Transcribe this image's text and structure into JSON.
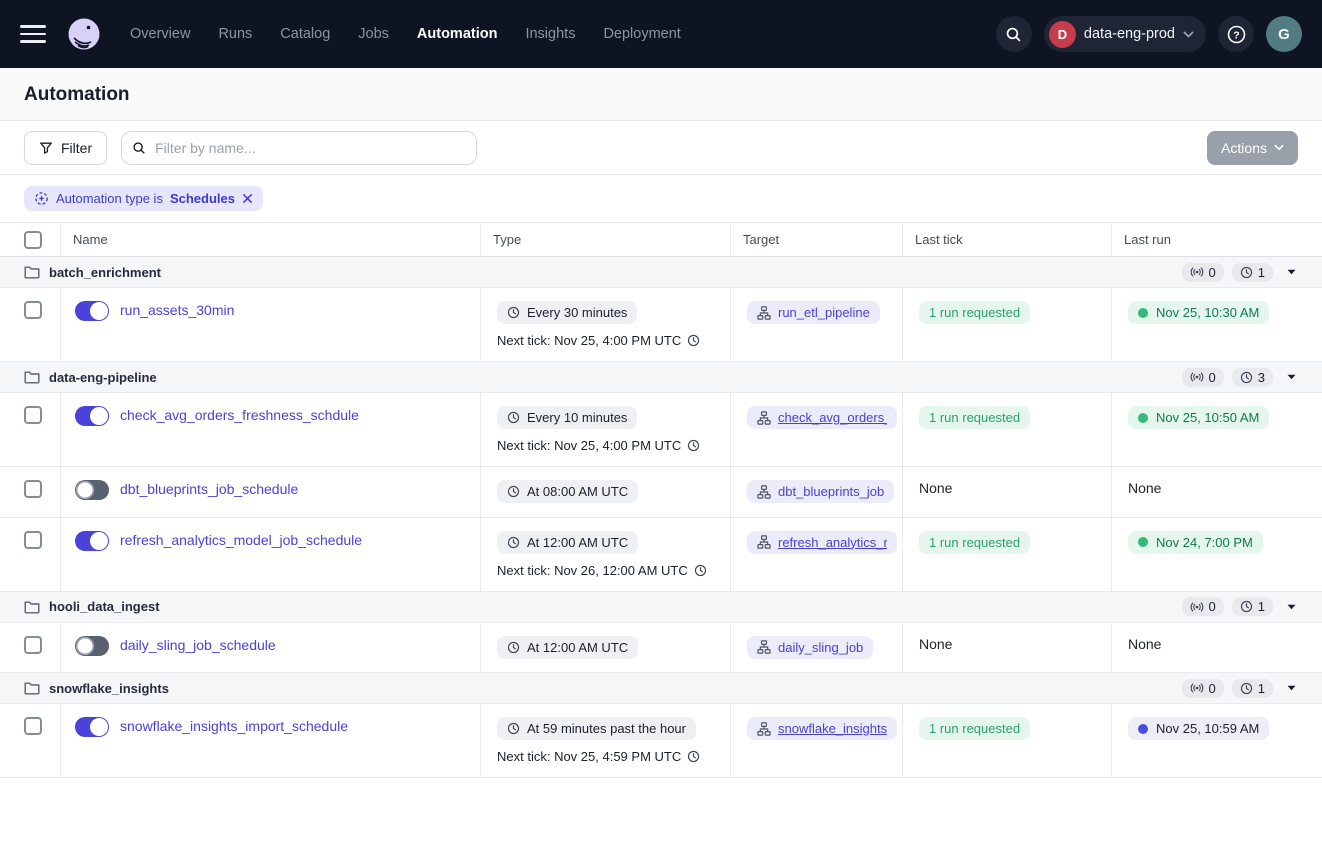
{
  "nav": {
    "items": [
      {
        "label": "Overview",
        "active": false
      },
      {
        "label": "Runs",
        "active": false
      },
      {
        "label": "Catalog",
        "active": false
      },
      {
        "label": "Jobs",
        "active": false
      },
      {
        "label": "Automation",
        "active": true
      },
      {
        "label": "Insights",
        "active": false
      },
      {
        "label": "Deployment",
        "active": false
      }
    ],
    "workspace": "data-eng-prod",
    "workspace_initial": "D",
    "user_initial": "G"
  },
  "page": {
    "title": "Automation"
  },
  "toolbar": {
    "filter_label": "Filter",
    "search_placeholder": "Filter by name...",
    "search_value": "",
    "actions_label": "Actions"
  },
  "filter_chip": {
    "prefix": "Automation type is",
    "value": "Schedules"
  },
  "table": {
    "columns": [
      "Name",
      "Type",
      "Target",
      "Last tick",
      "Last run"
    ],
    "groups": [
      {
        "name": "batch_enrichment",
        "sensor_count": "0",
        "schedule_count": "1",
        "rows": [
          {
            "name": "run_assets_30min",
            "enabled": true,
            "type": "Every 30 minutes",
            "next_tick": "Next tick: Nov 25, 4:00 PM UTC",
            "target": "run_etl_pipeline",
            "target_underline": false,
            "last_tick": {
              "text": "1 run requested",
              "kind": "chip"
            },
            "last_run": {
              "text": "Nov 25, 10:30 AM",
              "kind": "green"
            }
          }
        ]
      },
      {
        "name": "data-eng-pipeline",
        "sensor_count": "0",
        "schedule_count": "3",
        "rows": [
          {
            "name": "check_avg_orders_freshness_schdule",
            "enabled": true,
            "type": "Every 10 minutes",
            "next_tick": "Next tick: Nov 25, 4:00 PM UTC",
            "target": "check_avg_orders_",
            "target_underline": true,
            "last_tick": {
              "text": "1 run requested",
              "kind": "chip"
            },
            "last_run": {
              "text": "Nov 25, 10:50 AM",
              "kind": "green"
            }
          },
          {
            "name": "dbt_blueprints_job_schedule",
            "enabled": false,
            "type": "At 08:00 AM UTC",
            "next_tick": null,
            "target": "dbt_blueprints_job",
            "target_underline": false,
            "last_tick": {
              "text": "None",
              "kind": "plain"
            },
            "last_run": {
              "text": "None",
              "kind": "plain"
            }
          },
          {
            "name": "refresh_analytics_model_job_schedule",
            "enabled": true,
            "type": "At 12:00 AM UTC",
            "next_tick": "Next tick: Nov 26, 12:00 AM UTC",
            "target": "refresh_analytics_r",
            "target_underline": true,
            "last_tick": {
              "text": "1 run requested",
              "kind": "chip"
            },
            "last_run": {
              "text": "Nov 24, 7:00 PM",
              "kind": "green"
            }
          }
        ]
      },
      {
        "name": "hooli_data_ingest",
        "sensor_count": "0",
        "schedule_count": "1",
        "rows": [
          {
            "name": "daily_sling_job_schedule",
            "enabled": false,
            "type": "At 12:00 AM UTC",
            "next_tick": null,
            "target": "daily_sling_job",
            "target_underline": false,
            "last_tick": {
              "text": "None",
              "kind": "plain"
            },
            "last_run": {
              "text": "None",
              "kind": "plain"
            }
          }
        ]
      },
      {
        "name": "snowflake_insights",
        "sensor_count": "0",
        "schedule_count": "1",
        "rows": [
          {
            "name": "snowflake_insights_import_schedule",
            "enabled": true,
            "type": "At 59 minutes past the hour",
            "next_tick": "Next tick: Nov 25, 4:59 PM UTC",
            "target": "snowflake_insights",
            "target_underline": true,
            "last_tick": {
              "text": "1 run requested",
              "kind": "chip"
            },
            "last_run": {
              "text": "Nov 25, 10:59 AM",
              "kind": "blue"
            }
          }
        ]
      }
    ]
  },
  "colors": {
    "nav_bg": "#0F1422",
    "accent_indigo": "#4A43D9",
    "chip_lavender_bg": "#ECEBF9",
    "green_chip_bg": "#E5F6EC",
    "green_text": "#117A4C",
    "green_dot": "#35B97C",
    "blue_dot": "#4F49E4",
    "workspace_avatar": "#C63E4E",
    "user_avatar": "#527C82",
    "group_row_bg": "#F5F6F8",
    "actions_btn_bg": "#9AA0A9"
  }
}
